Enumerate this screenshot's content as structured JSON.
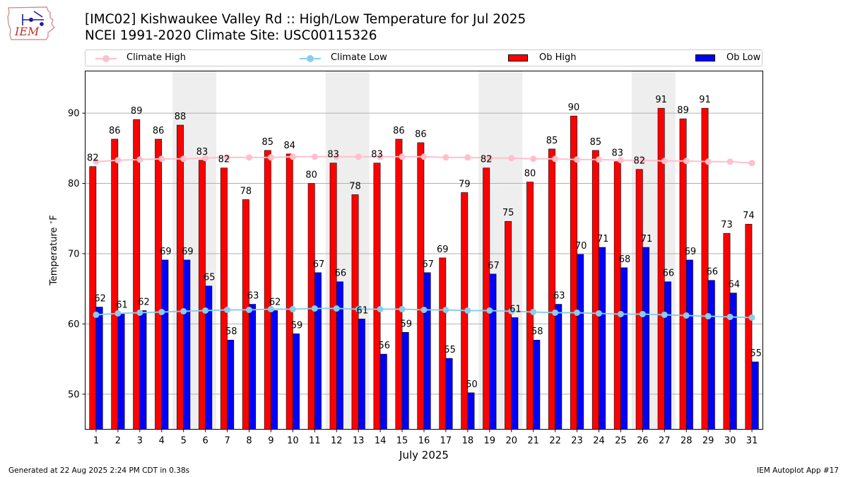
{
  "header": {
    "logo_text": "IEM",
    "title_line1": "[IMC02] Kishwaukee Valley Rd  :: High/Low Temperature for Jul 2025",
    "title_line2": "NCEI 1991-2020 Climate Site: USC00115326"
  },
  "colors": {
    "climate_high": "#ffc0cb",
    "climate_low": "#87ceeb",
    "ob_high": "#ff0000",
    "ob_low": "#0000ff",
    "weekend_shade": "#eeeeee",
    "grid": "#b0b0b0"
  },
  "chart_data": {
    "type": "bar",
    "xlabel": "July 2025",
    "ylabel": "Temperature $^\\circ$F",
    "ylim": [
      45,
      96
    ],
    "yticks": [
      50,
      60,
      70,
      80,
      90
    ],
    "grid": "horizontal",
    "legend_position": "top",
    "categories": [
      "1",
      "2",
      "3",
      "4",
      "5",
      "6",
      "7",
      "8",
      "9",
      "10",
      "11",
      "12",
      "13",
      "14",
      "15",
      "16",
      "17",
      "18",
      "19",
      "20",
      "21",
      "22",
      "23",
      "24",
      "25",
      "26",
      "27",
      "28",
      "29",
      "30",
      "31"
    ],
    "shaded_categories": [
      "5",
      "6",
      "12",
      "13",
      "19",
      "20",
      "26",
      "27"
    ],
    "series": [
      {
        "name": "Climate High",
        "kind": "line",
        "values": [
          83.1,
          83.3,
          83.4,
          83.5,
          83.5,
          83.6,
          83.7,
          83.7,
          83.7,
          83.8,
          83.8,
          83.8,
          83.8,
          83.8,
          83.8,
          83.8,
          83.7,
          83.7,
          83.6,
          83.6,
          83.5,
          83.5,
          83.4,
          83.4,
          83.3,
          83.3,
          83.2,
          83.2,
          83.1,
          83.1,
          82.9
        ]
      },
      {
        "name": "Climate Low",
        "kind": "line",
        "values": [
          61.3,
          61.5,
          61.6,
          61.7,
          61.8,
          61.9,
          62.0,
          62.0,
          62.1,
          62.1,
          62.2,
          62.2,
          62.1,
          62.1,
          62.1,
          62.0,
          62.0,
          61.9,
          61.9,
          61.8,
          61.7,
          61.6,
          61.6,
          61.5,
          61.4,
          61.4,
          61.3,
          61.2,
          61.1,
          61.0,
          60.9
        ]
      },
      {
        "name": "Ob High",
        "kind": "bar",
        "values": [
          82.4,
          86.3,
          89.1,
          86.3,
          88.3,
          83.3,
          82.2,
          77.7,
          84.7,
          84.2,
          80.0,
          82.9,
          78.4,
          82.9,
          86.3,
          85.8,
          69.4,
          78.7,
          82.2,
          74.6,
          80.2,
          84.9,
          89.6,
          84.7,
          83.1,
          82.0,
          90.7,
          89.2,
          90.7,
          72.9,
          74.2
        ]
      },
      {
        "name": "Ob Low",
        "kind": "bar",
        "values": [
          62.4,
          61.5,
          61.9,
          69.1,
          69.1,
          65.4,
          57.7,
          62.8,
          61.9,
          58.6,
          67.3,
          66.0,
          60.7,
          55.7,
          58.8,
          67.3,
          55.1,
          50.2,
          67.1,
          60.9,
          57.7,
          62.8,
          69.9,
          70.9,
          68.0,
          70.9,
          66.0,
          69.1,
          66.2,
          64.4,
          54.6
        ]
      }
    ],
    "labels_high": [
      "82",
      "86",
      "89",
      "86",
      "88",
      "83",
      "82",
      "78",
      "85",
      "84",
      "80",
      "83",
      "78",
      "83",
      "86",
      "86",
      "69",
      "79",
      "82",
      "75",
      "80",
      "85",
      "90",
      "85",
      "83",
      "82",
      "91",
      "89",
      "91",
      "73",
      "74"
    ],
    "labels_low": [
      "62",
      "61",
      "62",
      "69",
      "69",
      "65",
      "58",
      "63",
      "62",
      "59",
      "67",
      "66",
      "61",
      "56",
      "59",
      "67",
      "55",
      "50",
      "67",
      "61",
      "58",
      "63",
      "70",
      "71",
      "68",
      "71",
      "66",
      "69",
      "66",
      "64",
      "55"
    ]
  },
  "footer": {
    "left": "Generated at 22 Aug 2025 2:24 PM CDT in 0.38s",
    "right": "IEM Autoplot App #17"
  }
}
